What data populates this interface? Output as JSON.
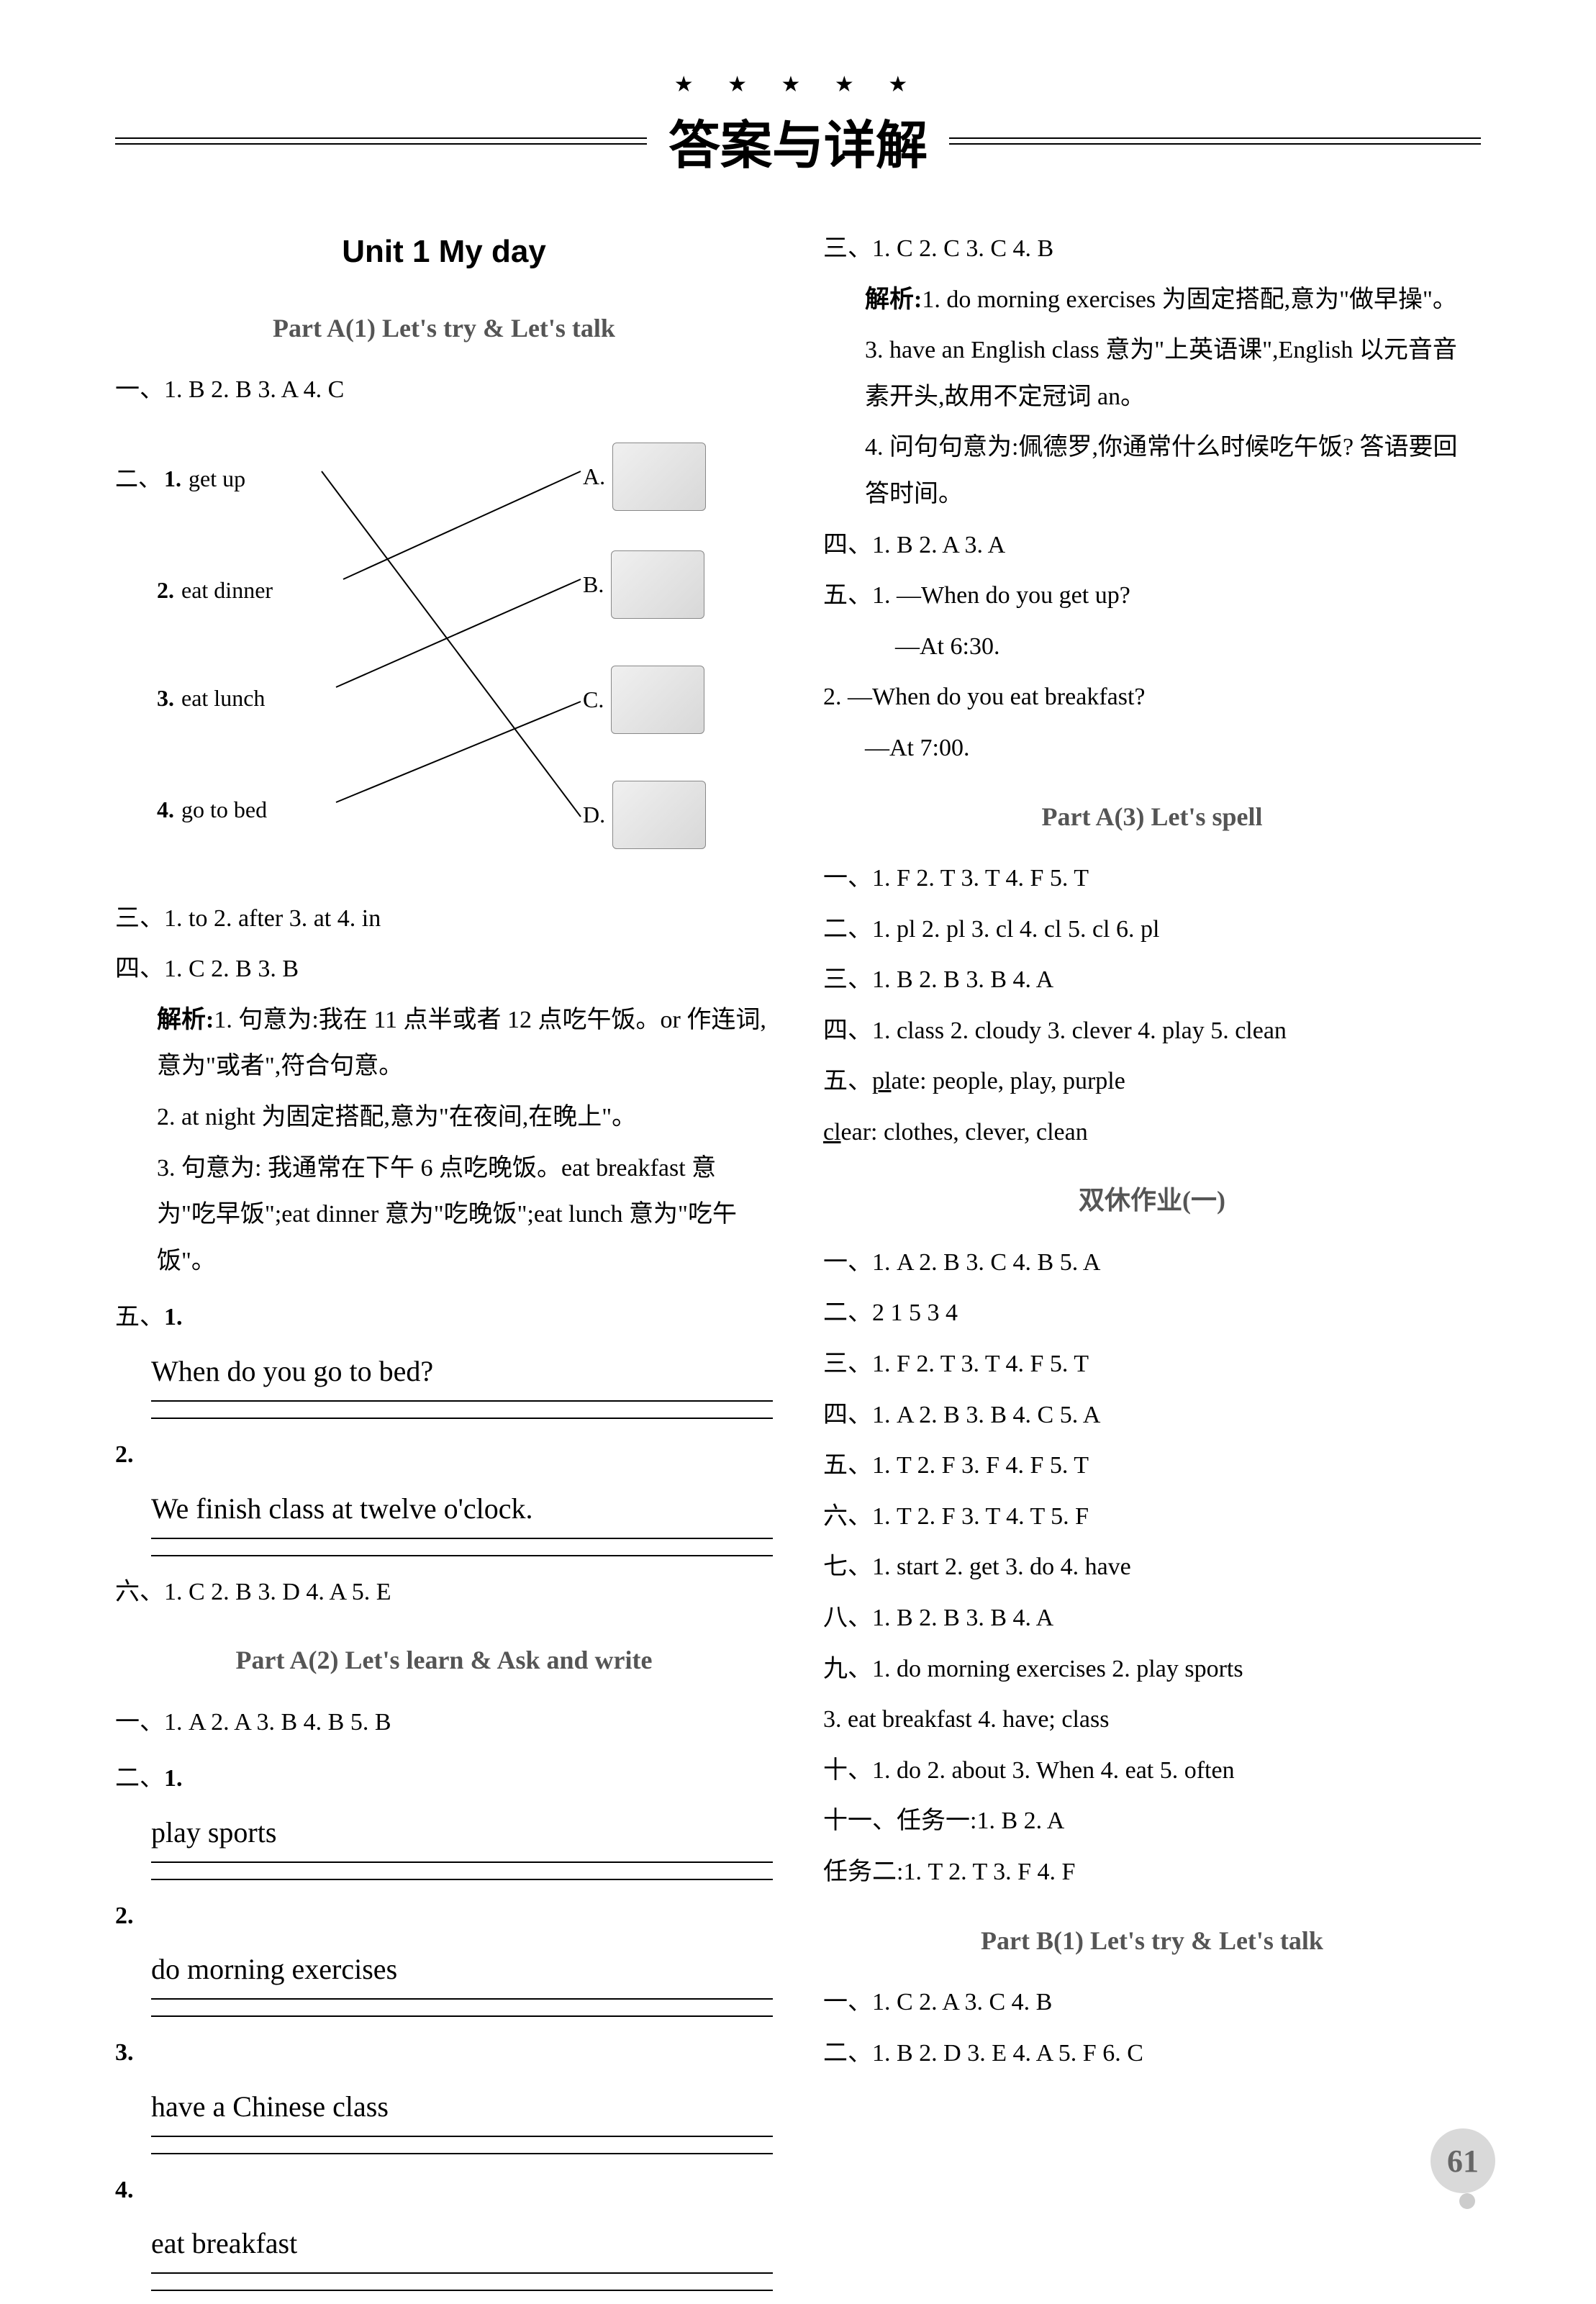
{
  "header": {
    "stars": "★ ★ ★ ★ ★",
    "title": "答案与详解"
  },
  "page_number": "61",
  "left": {
    "unit_title": "Unit 1   My day",
    "part_a1_title": "Part A(1)   Let's try & Let's talk",
    "sec1": "一、1. B   2. B   3. A   4. C",
    "sec2_label": "二、",
    "match_left": [
      {
        "n": "1.",
        "t": "get up"
      },
      {
        "n": "2.",
        "t": "eat dinner"
      },
      {
        "n": "3.",
        "t": "eat lunch"
      },
      {
        "n": "4.",
        "t": "go to bed"
      }
    ],
    "match_right": [
      "A.",
      "B.",
      "C.",
      "D."
    ],
    "sec3": "三、1. to   2. after   3. at   4. in",
    "sec4": "四、1. C   2. B   3. B",
    "sec4_exp_label": "解析:",
    "sec4_exp1": "1. 句意为:我在 11 点半或者 12 点吃午饭。or 作连词,意为\"或者\",符合句意。",
    "sec4_exp2": "2. at night 为固定搭配,意为\"在夜间,在晚上\"。",
    "sec4_exp3": "3. 句意为: 我通常在下午 6 点吃晚饭。eat breakfast 意为\"吃早饭\";eat dinner 意为\"吃晚饭\";eat lunch 意为\"吃午饭\"。",
    "sec5_label": "五、",
    "sec5_1": "When do you go to bed?",
    "sec5_2": "We finish class at twelve o'clock.",
    "sec6": "六、1. C   2. B   3. D   4. A   5. E",
    "part_a2_title": "Part A(2)   Let's learn & Ask and write",
    "a2_sec1": "一、1. A   2. A   3. B   4. B   5. B",
    "a2_sec2_label": "二、",
    "a2_fill": [
      "play sports",
      "do morning exercises",
      "have a Chinese class",
      "eat breakfast"
    ]
  },
  "right": {
    "sec3": "三、1. C   2. C   3. C   4. B",
    "sec3_exp_label": "解析:",
    "sec3_exp1": "1. do morning exercises 为固定搭配,意为\"做早操\"。",
    "sec3_exp3": "3. have an English class 意为\"上英语课\",English 以元音音素开头,故用不定冠词 an。",
    "sec3_exp4": "4. 问句句意为:佩德罗,你通常什么时候吃午饭? 答语要回答时间。",
    "sec4": "四、1. B   2. A   3. A",
    "sec5_q1": "五、1. —When do you get up?",
    "sec5_a1": "—At 6:30.",
    "sec5_q2": "2. —When do you eat breakfast?",
    "sec5_a2": "—At 7:00.",
    "part_a3_title": "Part A(3)   Let's spell",
    "a3_1": "一、1. F   2. T   3. T   4. F   5. T",
    "a3_2": "二、1. pl   2. pl   3. cl   4. cl   5. cl   6. pl",
    "a3_3": "三、1. B   2. B   3. B   4. A",
    "a3_4": "四、1. class   2. cloudy   3. clever   4. play   5. clean",
    "a3_5a": "五、plate: people, play, purple",
    "a3_5b": "clear: clothes, clever, clean",
    "weekend_title": "双休作业(一)",
    "w1": "一、1. A   2. B   3. C   4. B   5. A",
    "w2": "二、2   1   5   3   4",
    "w3": "三、1. F   2. T   3. T   4. F   5. T",
    "w4": "四、1. A   2. B   3. B   4. C   5. A",
    "w5": "五、1. T   2. F   3. F   4. F   5. T",
    "w6": "六、1. T   2. F   3. T   4. T   5. F",
    "w7": "七、1. start   2. get   3. do   4. have",
    "w8": "八、1. B   2. B   3. B   4. A",
    "w9a": "九、1. do morning exercises   2. play sports",
    "w9b": "3. eat breakfast   4. have; class",
    "w10": "十、1. do   2. about   3. When   4. eat   5. often",
    "w11a": "十一、任务一:1. B   2. A",
    "w11b": "任务二:1. T   2. T   3. F   4. F",
    "part_b1_title": "Part B(1)   Let's try & Let's talk",
    "b1_1": "一、1. C   2. A   3. C   4. B",
    "b1_2": "二、1. B   2. D   3. E   4. A   5. F   6. C"
  }
}
